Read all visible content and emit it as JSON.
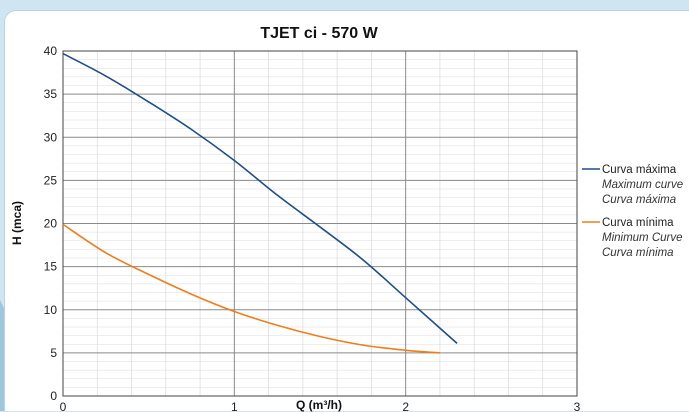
{
  "chart_data": {
    "type": "line",
    "title": "TJET ci - 570 W",
    "xlabel": "Q (m³/h)",
    "ylabel": "H (mca)",
    "xlim": [
      0,
      3
    ],
    "ylim": [
      0,
      40
    ],
    "x_ticks": [
      "0",
      "1",
      "2",
      "3"
    ],
    "y_ticks": [
      "0",
      "5",
      "10",
      "15",
      "20",
      "25",
      "30",
      "35",
      "40"
    ],
    "grid": true,
    "legend_position": "right",
    "series": [
      {
        "name": "Curva máxima",
        "subtitles": [
          "Maximum curve",
          "Curva máxima"
        ],
        "color": "#1f4e8c",
        "x": [
          0,
          0.25,
          0.5,
          0.75,
          1.0,
          1.25,
          1.5,
          1.75,
          2.0,
          2.3
        ],
        "y": [
          39.7,
          37.1,
          34.1,
          30.9,
          27.3,
          23.3,
          19.6,
          15.8,
          11.4,
          6.1
        ]
      },
      {
        "name": "Curva mínima",
        "subtitles": [
          "Minimum Curve",
          "Curva mínima"
        ],
        "color": "#f07d1a",
        "x": [
          0,
          0.25,
          0.5,
          0.75,
          1.0,
          1.25,
          1.5,
          1.75,
          2.0,
          2.2
        ],
        "y": [
          19.9,
          16.6,
          14.1,
          11.8,
          9.8,
          8.2,
          6.9,
          5.9,
          5.3,
          5.0
        ]
      }
    ]
  }
}
